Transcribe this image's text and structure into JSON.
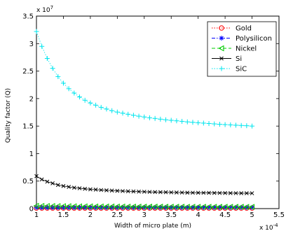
{
  "chart_data": {
    "type": "scatter",
    "title": "",
    "xlabel": "Width of micro plate (m)",
    "ylabel": "Quality factor (Q)",
    "x_exponent_label": "x 10",
    "x_exponent_power": "-4",
    "y_exponent_label": "x 10",
    "y_exponent_power": "7",
    "xlim": [
      1,
      5.5
    ],
    "ylim": [
      0,
      3.5
    ],
    "x_scale_factor": 0.0001,
    "y_scale_factor": 10000000,
    "xticks": [
      1,
      1.5,
      2,
      2.5,
      3,
      3.5,
      4,
      4.5,
      5,
      5.5
    ],
    "xtick_labels": [
      "1",
      "1.5",
      "2",
      "2.5",
      "3",
      "3.5",
      "4",
      "4.5",
      "5",
      "5.5"
    ],
    "yticks": [
      0,
      0.5,
      1,
      1.5,
      2,
      2.5,
      3,
      3.5
    ],
    "ytick_labels": [
      "0",
      "0.5",
      "1",
      "1.5",
      "2",
      "2.5",
      "3",
      "3.5"
    ],
    "grid": false,
    "legend_position": "top-right",
    "series": [
      {
        "name": "Gold",
        "color": "#ff0000",
        "marker": "circle",
        "line": "dotted",
        "x": [
          1,
          1.1,
          1.2,
          1.3,
          1.4,
          1.5,
          1.6,
          1.7,
          1.8,
          1.9,
          2,
          2.1,
          2.2,
          2.3,
          2.4,
          2.5,
          2.6,
          2.7,
          2.8,
          2.9,
          3,
          3.1,
          3.2,
          3.3,
          3.4,
          3.5,
          3.6,
          3.7,
          3.8,
          3.9,
          4,
          4.1,
          4.2,
          4.3,
          4.4,
          4.5,
          4.6,
          4.7,
          4.8,
          4.9,
          5
        ],
        "values": [
          0.01,
          0.01,
          0.01,
          0.01,
          0.01,
          0.01,
          0.01,
          0.01,
          0.01,
          0.01,
          0.01,
          0.01,
          0.01,
          0.01,
          0.01,
          0.01,
          0.01,
          0.01,
          0.01,
          0.01,
          0.01,
          0.01,
          0.01,
          0.01,
          0.01,
          0.01,
          0.01,
          0.01,
          0.01,
          0.01,
          0.01,
          0.01,
          0.01,
          0.01,
          0.01,
          0.01,
          0.01,
          0.01,
          0.01,
          0.01,
          0.01
        ]
      },
      {
        "name": "Polysilicon",
        "color": "#0000ff",
        "marker": "star",
        "line": "dashdot",
        "x": [
          1,
          1.1,
          1.2,
          1.3,
          1.4,
          1.5,
          1.6,
          1.7,
          1.8,
          1.9,
          2,
          2.1,
          2.2,
          2.3,
          2.4,
          2.5,
          2.6,
          2.7,
          2.8,
          2.9,
          3,
          3.1,
          3.2,
          3.3,
          3.4,
          3.5,
          3.6,
          3.7,
          3.8,
          3.9,
          4,
          4.1,
          4.2,
          4.3,
          4.4,
          4.5,
          4.6,
          4.7,
          4.8,
          4.9,
          5
        ],
        "values": [
          0.02,
          0.02,
          0.02,
          0.02,
          0.02,
          0.02,
          0.02,
          0.02,
          0.02,
          0.02,
          0.02,
          0.02,
          0.02,
          0.02,
          0.02,
          0.02,
          0.02,
          0.02,
          0.02,
          0.02,
          0.02,
          0.02,
          0.02,
          0.02,
          0.02,
          0.02,
          0.02,
          0.02,
          0.02,
          0.02,
          0.02,
          0.02,
          0.02,
          0.02,
          0.02,
          0.02,
          0.02,
          0.02,
          0.02,
          0.02,
          0.02
        ]
      },
      {
        "name": "Nickel",
        "color": "#00cc00",
        "marker": "triangle-left",
        "line": "dashed",
        "x": [
          1,
          1.1,
          1.2,
          1.3,
          1.4,
          1.5,
          1.6,
          1.7,
          1.8,
          1.9,
          2,
          2.1,
          2.2,
          2.3,
          2.4,
          2.5,
          2.6,
          2.7,
          2.8,
          2.9,
          3,
          3.1,
          3.2,
          3.3,
          3.4,
          3.5,
          3.6,
          3.7,
          3.8,
          3.9,
          4,
          4.1,
          4.2,
          4.3,
          4.4,
          4.5,
          4.6,
          4.7,
          4.8,
          4.9,
          5
        ],
        "values": [
          0.05,
          0.048,
          0.047,
          0.046,
          0.045,
          0.044,
          0.043,
          0.042,
          0.041,
          0.04,
          0.04,
          0.039,
          0.039,
          0.038,
          0.038,
          0.037,
          0.037,
          0.036,
          0.036,
          0.036,
          0.035,
          0.035,
          0.035,
          0.035,
          0.034,
          0.034,
          0.034,
          0.034,
          0.033,
          0.033,
          0.033,
          0.033,
          0.033,
          0.032,
          0.032,
          0.032,
          0.032,
          0.032,
          0.032,
          0.031,
          0.031
        ]
      },
      {
        "name": "Si",
        "color": "#000000",
        "marker": "x",
        "line": "solid",
        "x": [
          1,
          1.1,
          1.2,
          1.3,
          1.4,
          1.5,
          1.6,
          1.7,
          1.8,
          1.9,
          2,
          2.1,
          2.2,
          2.3,
          2.4,
          2.5,
          2.6,
          2.7,
          2.8,
          2.9,
          3,
          3.1,
          3.2,
          3.3,
          3.4,
          3.5,
          3.6,
          3.7,
          3.8,
          3.9,
          4,
          4.1,
          4.2,
          4.3,
          4.4,
          4.5,
          4.6,
          4.7,
          4.8,
          4.9,
          5
        ],
        "values": [
          0.59,
          0.53,
          0.49,
          0.46,
          0.43,
          0.41,
          0.395,
          0.38,
          0.37,
          0.36,
          0.35,
          0.345,
          0.338,
          0.333,
          0.328,
          0.323,
          0.319,
          0.315,
          0.312,
          0.309,
          0.306,
          0.303,
          0.301,
          0.299,
          0.297,
          0.295,
          0.293,
          0.292,
          0.29,
          0.289,
          0.288,
          0.287,
          0.286,
          0.285,
          0.284,
          0.283,
          0.282,
          0.281,
          0.28,
          0.28,
          0.279
        ]
      },
      {
        "name": "SiC",
        "color": "#00e5ee",
        "marker": "plus",
        "line": "dotted",
        "x": [
          1,
          1.1,
          1.2,
          1.3,
          1.4,
          1.5,
          1.6,
          1.7,
          1.8,
          1.9,
          2,
          2.1,
          2.2,
          2.3,
          2.4,
          2.5,
          2.6,
          2.7,
          2.8,
          2.9,
          3,
          3.1,
          3.2,
          3.3,
          3.4,
          3.5,
          3.6,
          3.7,
          3.8,
          3.9,
          4,
          4.1,
          4.2,
          4.3,
          4.4,
          4.5,
          4.6,
          4.7,
          4.8,
          4.9,
          5
        ],
        "values": [
          3.22,
          2.95,
          2.73,
          2.55,
          2.4,
          2.28,
          2.18,
          2.1,
          2.03,
          1.97,
          1.92,
          1.88,
          1.84,
          1.81,
          1.78,
          1.755,
          1.735,
          1.715,
          1.697,
          1.68,
          1.665,
          1.651,
          1.638,
          1.626,
          1.615,
          1.605,
          1.595,
          1.586,
          1.577,
          1.569,
          1.561,
          1.554,
          1.547,
          1.54,
          1.534,
          1.528,
          1.522,
          1.516,
          1.511,
          1.506,
          1.5
        ]
      }
    ]
  }
}
